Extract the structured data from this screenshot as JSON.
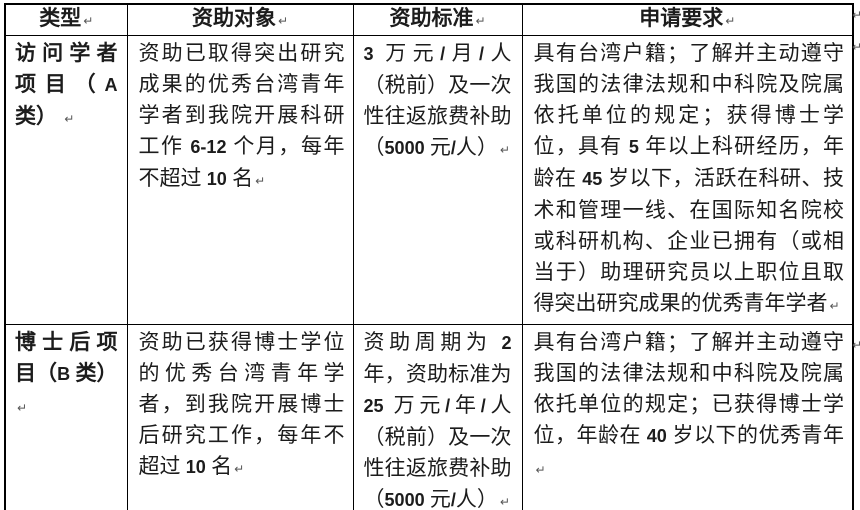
{
  "document": {
    "paragraph_mark": "↵",
    "background_color": "#ffffff",
    "border_color": "#000000",
    "text_color": "#1c1c1c"
  },
  "table": {
    "headers": [
      "类型",
      "资助对象",
      "资助标准",
      "申请要求"
    ],
    "rows": [
      {
        "type": "访问学者项目（A 类）",
        "target": "资助已取得突出研究成果的优秀台湾青年学者到我院开展科研工作 6-12 个月，每年不超过 10 名",
        "standard": "3 万元/月/人（税前）及一次性往返旅费补助（5000 元/人）",
        "requirements": "具有台湾户籍；了解并主动遵守我国的法律法规和中科院及院属依托单位的规定；获得博士学位，具有 5 年以上科研经历，年龄在 45 岁以下，活跃在科研、技术和管理一线、在国际知名院校或科研机构、企业已拥有（或相当于）助理研究员以上职位且取得突出研究成果的优秀青年学者"
      },
      {
        "type": "博士后项目（B 类）",
        "target": "资助已获得博士学位的优秀台湾青年学者，到我院开展博士后研究工作，每年不超过 10 名",
        "standard": "资助周期为 2 年，资助标准为 25 万元/年/人（税前）及一次性往返旅费补助（5000 元/人）",
        "requirements": "具有台湾户籍；了解并主动遵守我国的法律法规和中科院及院属依托单位的规定；已获得博士学位，年龄在 40 岁以下的优秀青年"
      }
    ]
  }
}
